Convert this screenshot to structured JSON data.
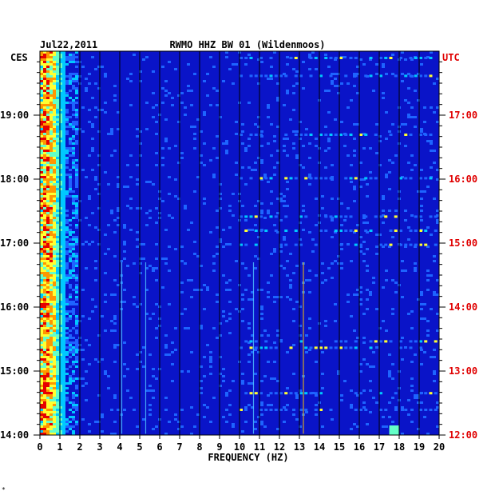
{
  "header": {
    "date": "Jul22,2011",
    "station": "RWMO HHZ BW 01 (Wildenmoos)",
    "left_tz": "CES",
    "right_tz": "UTC"
  },
  "footer_mark": "*",
  "colors": {
    "background": "#0a14c8",
    "grid": "#000000",
    "utc_text": "#e00000",
    "text": "#000000"
  },
  "chart_data": {
    "type": "heatmap",
    "title": "RWMO HHZ BW 01 (Wildenmoos)",
    "xlabel": "FREQUENCY (HZ)",
    "xlim": [
      0,
      20
    ],
    "x_ticks": [
      "0",
      "1",
      "2",
      "3",
      "4",
      "5",
      "6",
      "7",
      "8",
      "9",
      "10",
      "11",
      "12",
      "13",
      "14",
      "15",
      "16",
      "17",
      "18",
      "19",
      "20"
    ],
    "y_left_label": "CES",
    "y_right_label": "UTC",
    "y_left_ticks": [
      {
        "label": "19:00",
        "hour": 19
      },
      {
        "label": "18:00",
        "hour": 18
      },
      {
        "label": "17:00",
        "hour": 17
      },
      {
        "label": "16:00",
        "hour": 16
      },
      {
        "label": "15:00",
        "hour": 15
      },
      {
        "label": "14:00",
        "hour": 14
      }
    ],
    "y_right_ticks": [
      {
        "label": "17:00",
        "hour": 17
      },
      {
        "label": "16:00",
        "hour": 16
      },
      {
        "label": "15:00",
        "hour": 15
      },
      {
        "label": "14:00",
        "hour": 14
      },
      {
        "label": "13:00",
        "hour": 13
      },
      {
        "label": "12:00",
        "hour": 12
      }
    ],
    "ylim_ces_hours": [
      14,
      19.95
    ],
    "grid": true,
    "colormap": [
      "#0a14c8",
      "#1e64ff",
      "#00c8ff",
      "#64ffc8",
      "#ffff32",
      "#ff9600",
      "#e60000"
    ],
    "low_freq_band_hz": [
      0,
      2
    ],
    "spectral_lines_hz": [
      4.1,
      5.3,
      10.7,
      13.2
    ],
    "high_freq_burst_hz": [
      17.5,
      18.0
    ],
    "noise_row_hours": [
      19.9,
      19.62,
      18.7,
      18.02,
      17.42,
      17.2,
      16.98,
      15.47,
      15.37,
      14.66,
      14.4
    ]
  }
}
